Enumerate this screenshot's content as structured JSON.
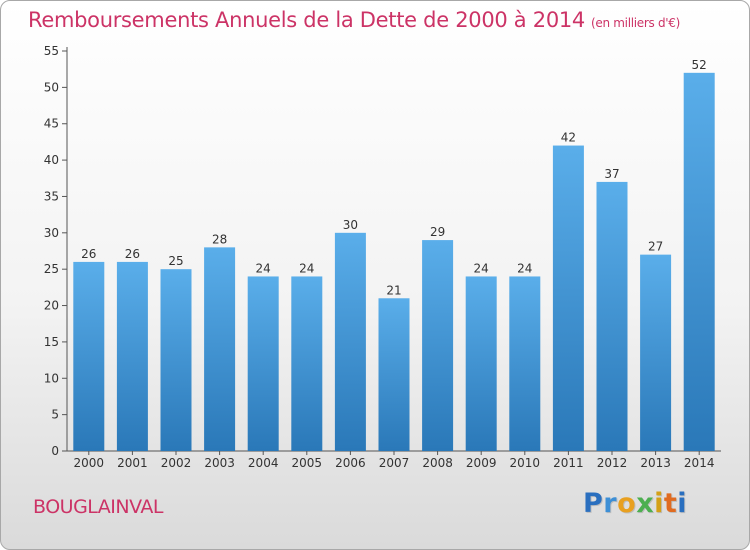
{
  "header": {
    "title": "Remboursements Annuels de la Dette de 2000 à 2014",
    "subtitle": "(en milliers d'€)"
  },
  "footer": {
    "commune": "BOUGLAINVAL",
    "logo": {
      "letters": [
        "P",
        "r",
        "o",
        "x",
        "i",
        "t",
        "i"
      ],
      "colors": [
        "#2a6fbf",
        "#3d8fd6",
        "#e8a020",
        "#4caf50",
        "#d4a017",
        "#e06b20",
        "#2a6fbf"
      ]
    }
  },
  "chart_data": {
    "type": "bar",
    "title": "Remboursements Annuels de la Dette de 2000 à 2014",
    "categories": [
      "2000",
      "2001",
      "2002",
      "2003",
      "2004",
      "2005",
      "2006",
      "2007",
      "2008",
      "2009",
      "2010",
      "2011",
      "2012",
      "2013",
      "2014"
    ],
    "values": [
      26,
      26,
      25,
      28,
      24,
      24,
      30,
      21,
      29,
      24,
      24,
      42,
      37,
      27,
      52
    ],
    "ylim": [
      0,
      55
    ],
    "yticks": [
      0,
      5,
      10,
      15,
      20,
      25,
      30,
      35,
      40,
      45,
      50,
      55
    ],
    "grid": false,
    "bar_color_top": "#5aaeea",
    "bar_color_bottom": "#2a78b8"
  }
}
